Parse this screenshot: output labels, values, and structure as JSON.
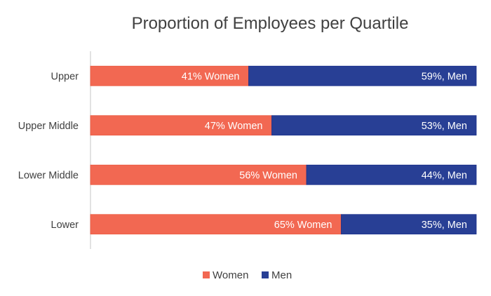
{
  "chart_data": {
    "type": "bar",
    "orientation": "horizontal",
    "stacked": true,
    "percent_stacked": true,
    "title": "Proportion of Employees per Quartile",
    "xlabel": "",
    "ylabel": "",
    "xlim": [
      0,
      100
    ],
    "grid": false,
    "legend_position": "bottom",
    "categories": [
      "Upper",
      "Upper Middle",
      "Lower Middle",
      "Lower"
    ],
    "series": [
      {
        "name": "Women",
        "color": "#f26852",
        "values": [
          41,
          47,
          56,
          65
        ],
        "data_labels": [
          "41% Women",
          "47% Women",
          "56% Women",
          "65% Women"
        ]
      },
      {
        "name": "Men",
        "color": "#283f95",
        "values": [
          59,
          53,
          44,
          35
        ],
        "data_labels": [
          "59%, Men",
          "53%, Men",
          "44%, Men",
          "35%, Men"
        ]
      }
    ]
  }
}
